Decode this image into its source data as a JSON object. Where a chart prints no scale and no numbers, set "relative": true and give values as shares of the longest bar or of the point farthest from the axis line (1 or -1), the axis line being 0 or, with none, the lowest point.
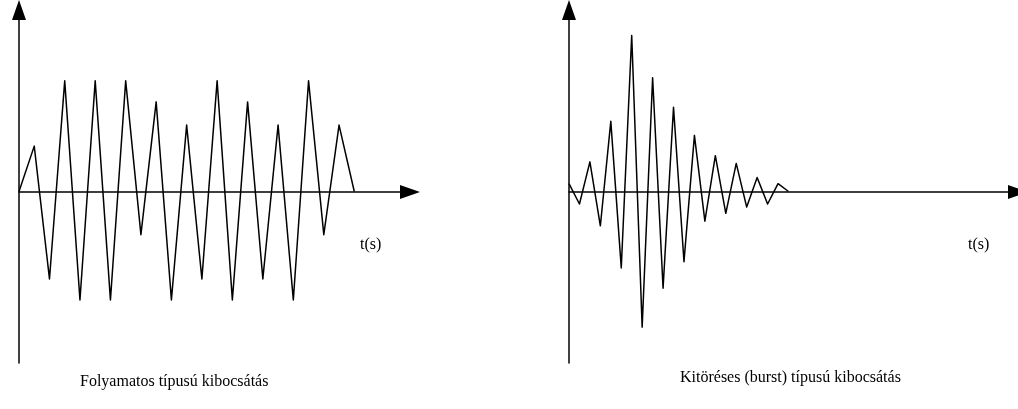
{
  "chart_data": [
    {
      "type": "line",
      "relative": true,
      "xlabel": "t(s)",
      "annotations": [
        "Folyamatos típusú kibocsátás"
      ],
      "color": "#000000",
      "marker": "none",
      "categories": [
        null,
        null,
        null,
        null,
        null,
        null,
        null,
        null,
        null,
        null,
        null,
        null,
        null,
        null,
        null,
        null,
        null,
        null,
        null,
        null,
        null,
        null,
        null,
        null,
        null,
        null
      ],
      "values": [
        0,
        0.41,
        -0.79,
        1,
        -0.98,
        1,
        -0.98,
        1,
        -0.39,
        0.81,
        -0.98,
        0.6,
        -0.79,
        1,
        -0.98,
        0.81,
        -0.79,
        0.6,
        -0.98,
        1,
        -0.39,
        0.6,
        0,
        null,
        null,
        null
      ]
    },
    {
      "type": "line",
      "relative": true,
      "xlabel": "t(s)",
      "annotations": [
        "Kitöréses (burst) típusú kibocsátás"
      ],
      "color": "#000000",
      "marker": "none",
      "categories": [
        null,
        null,
        null,
        null,
        null,
        null,
        null,
        null,
        null,
        null,
        null,
        null,
        null,
        null,
        null,
        null,
        null,
        null,
        null,
        null,
        null,
        null,
        null,
        null,
        null,
        null,
        null,
        null,
        null,
        null,
        null,
        null,
        null,
        null,
        null,
        null,
        null,
        null,
        null,
        null,
        null,
        null,
        null
      ],
      "values": [
        0.05,
        -0.08,
        0.19,
        -0.22,
        0.45,
        -0.49,
        1,
        -0.87,
        0.73,
        -0.62,
        0.54,
        -0.45,
        0.36,
        -0.19,
        0.23,
        -0.14,
        0.18,
        -0.1,
        0.09,
        -0.08,
        0.05,
        0,
        null,
        null,
        null,
        null,
        null,
        null,
        null,
        null,
        null,
        null,
        null,
        null,
        null,
        null,
        null,
        null,
        null,
        null,
        null,
        null,
        null
      ]
    }
  ]
}
